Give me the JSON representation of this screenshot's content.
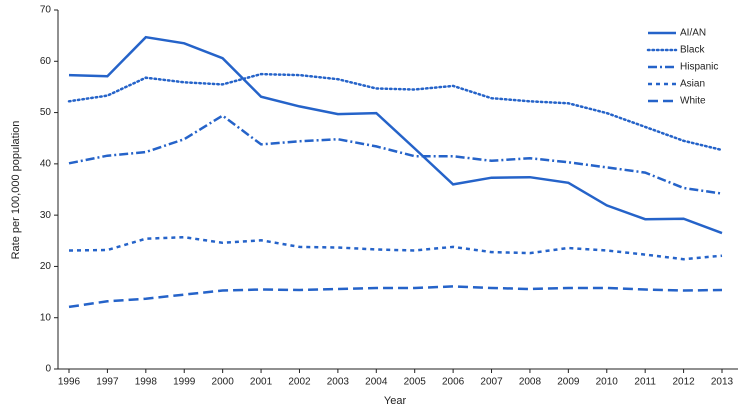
{
  "chart_data": {
    "type": "line",
    "x_label": "Year",
    "y_label": "Rate per 100,000 population",
    "categories": [
      "1996",
      "1997",
      "1998",
      "1999",
      "2000",
      "2001",
      "2002",
      "2003",
      "2004",
      "2005",
      "2006",
      "2007",
      "2008",
      "2009",
      "2010",
      "2011",
      "2012",
      "2013"
    ],
    "ylim": [
      0,
      70
    ],
    "yticks": [
      0,
      10,
      20,
      30,
      40,
      50,
      60,
      70
    ],
    "legend": "top-right",
    "series": [
      {
        "name": "AI/AN",
        "color": "#2563c9",
        "dash": "solid",
        "values": [
          57.3,
          57.1,
          64.7,
          63.5,
          60.6,
          53.1,
          51.2,
          49.7,
          49.9,
          43.0,
          36.0,
          37.3,
          37.4,
          36.3,
          31.9,
          29.2,
          29.3,
          26.5
        ]
      },
      {
        "name": "Black",
        "color": "#2563c9",
        "dash": "dotted",
        "values": [
          52.2,
          53.3,
          56.8,
          55.9,
          55.5,
          57.5,
          57.3,
          56.5,
          54.7,
          54.5,
          55.2,
          52.8,
          52.2,
          51.8,
          49.9,
          47.2,
          44.5,
          42.7
        ]
      },
      {
        "name": "Hispanic",
        "color": "#2563c9",
        "dash": "dashdot",
        "values": [
          40.1,
          41.6,
          42.3,
          44.8,
          49.4,
          43.8,
          44.4,
          44.8,
          43.4,
          41.5,
          41.5,
          40.6,
          41.1,
          40.3,
          39.3,
          38.3,
          35.3,
          34.2
        ]
      },
      {
        "name": "Asian",
        "color": "#2563c9",
        "dash": "shortdash",
        "values": [
          23.1,
          23.2,
          25.4,
          25.7,
          24.6,
          25.1,
          23.8,
          23.7,
          23.3,
          23.1,
          23.8,
          22.8,
          22.6,
          23.6,
          23.1,
          22.3,
          21.4,
          22.1
        ]
      },
      {
        "name": "White",
        "color": "#2563c9",
        "dash": "dashed",
        "values": [
          12.1,
          13.2,
          13.7,
          14.5,
          15.3,
          15.5,
          15.4,
          15.6,
          15.8,
          15.8,
          16.1,
          15.8,
          15.6,
          15.8,
          15.8,
          15.5,
          15.3,
          15.4
        ]
      }
    ]
  }
}
